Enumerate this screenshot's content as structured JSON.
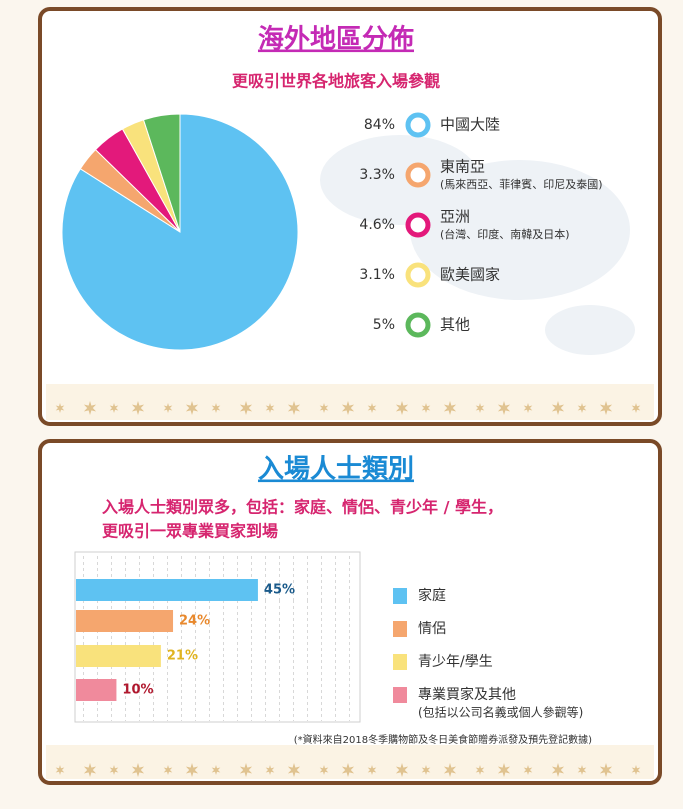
{
  "chart_data": [
    {
      "type": "pie",
      "title": "海外地區分佈",
      "subtitle": "更吸引世界各地旅客入場參觀",
      "categories": [
        "中國大陸",
        "東南亞",
        "亞洲",
        "歐美國家",
        "其他"
      ],
      "category_notes": [
        null,
        "(馬來西亞、菲律賓、印尼及泰國)",
        "(台灣、印度、南韓及日本)",
        null,
        null
      ],
      "values": [
        84,
        3.3,
        4.6,
        3.1,
        5
      ],
      "value_labels": [
        "84%",
        "3.3%",
        "4.6%",
        "3.1%",
        "5%"
      ],
      "colors": [
        "#5ec2f2",
        "#f5a66e",
        "#e3197b",
        "#f9e27c",
        "#5cb85c"
      ]
    },
    {
      "type": "hbar",
      "title": "入場人士類別",
      "subtitle": [
        "入場人士類別眾多，包括：家庭、情侶、青少年 / 學生，",
        "更吸引一眾專業買家到場"
      ],
      "categories": [
        "家庭",
        "情侶",
        "青少年/學生",
        "專業買家及其他"
      ],
      "category_notes": [
        null,
        null,
        null,
        "(包括以公司名義或個人參觀等)"
      ],
      "values": [
        45,
        24,
        21,
        10
      ],
      "value_labels": [
        "45%",
        "24%",
        "21%",
        "10%"
      ],
      "colors": [
        "#5ec2f2",
        "#f5a66e",
        "#f9e27c",
        "#f08a9c"
      ],
      "xlim": [
        0,
        70
      ],
      "note": "(*資料來自2018冬季購物節及冬日美食節贈券派發及預先登記數據)"
    }
  ]
}
